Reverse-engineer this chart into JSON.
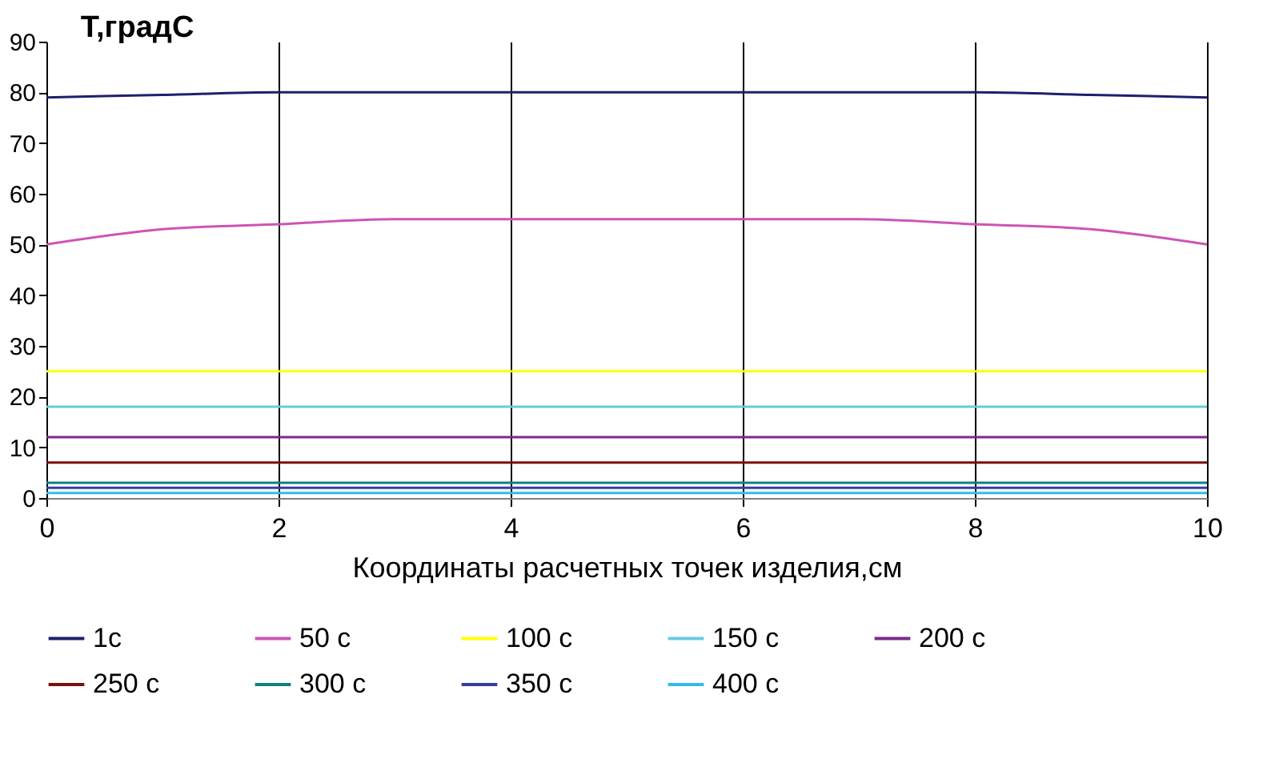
{
  "chart_data": {
    "type": "line",
    "title": "Т,градС",
    "xlabel": "Координаты расчетных точек изделия,см",
    "x": [
      0,
      1,
      2,
      3,
      4,
      5,
      6,
      7,
      8,
      9,
      10
    ],
    "xlim": [
      0,
      10
    ],
    "xticks": [
      0,
      2,
      4,
      6,
      8,
      10
    ],
    "ylim": [
      0,
      90
    ],
    "yticks": [
      0,
      10,
      20,
      30,
      40,
      50,
      60,
      70,
      80,
      90
    ],
    "grid": "x",
    "legend": "bottom",
    "marker": "none",
    "line_style": "solid",
    "series": [
      {
        "name": " 1с",
        "color": "#1f1f6e",
        "values": [
          79,
          79.5,
          80,
          80,
          80,
          80,
          80,
          80,
          80,
          79.5,
          79
        ]
      },
      {
        "name": "50 с",
        "color": "#cc55b5",
        "values": [
          50,
          53,
          54,
          55,
          55,
          55,
          55,
          55,
          54,
          53,
          50
        ]
      },
      {
        "name": "100 с",
        "color": "#ffff00",
        "values": [
          25,
          25,
          25,
          25,
          25,
          25,
          25,
          25,
          25,
          25,
          25
        ]
      },
      {
        "name": "150 с",
        "color": "#66ccdd",
        "values": [
          18,
          18,
          18,
          18,
          18,
          18,
          18,
          18,
          18,
          18,
          18
        ]
      },
      {
        "name": "200 с",
        "color": "#7b2a8a",
        "values": [
          12,
          12,
          12,
          12,
          12,
          12,
          12,
          12,
          12,
          12,
          12
        ]
      },
      {
        "name": "250 с",
        "color": "#7a1010",
        "values": [
          7,
          7,
          7,
          7,
          7,
          7,
          7,
          7,
          7,
          7,
          7
        ]
      },
      {
        "name": "300 с",
        "color": "#108080",
        "values": [
          3,
          3,
          3,
          3,
          3,
          3,
          3,
          3,
          3,
          3,
          3
        ]
      },
      {
        "name": "350 с",
        "color": "#3040a0",
        "values": [
          2,
          2,
          2,
          2,
          2,
          2,
          2,
          2,
          2,
          2,
          2
        ]
      },
      {
        "name": "400 с",
        "color": "#33bbee",
        "values": [
          1,
          1,
          1,
          1,
          1,
          1,
          1,
          1,
          1,
          1,
          1
        ]
      }
    ]
  }
}
